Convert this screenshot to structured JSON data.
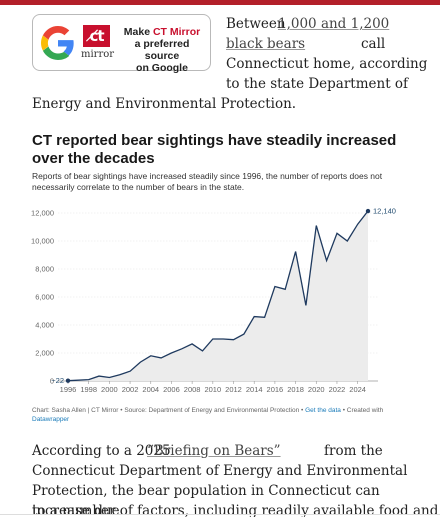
{
  "promo": {
    "google_icon": "google-g-logo",
    "ctmirror_mark": "c̸t",
    "ctmirror_word": "mirror",
    "line1_prefix": "Make ",
    "line1_brand": "CT Mirror",
    "line2": "a preferred source",
    "line3": "on Google"
  },
  "intro": {
    "between": "Between",
    "link": "1,000 and 1,200 black bears",
    "link_part1": "1,000 and 1,200",
    "link_part2": "black bears",
    "call": "call",
    "line3": "Connecticut home, according",
    "line4": "to the state Department of",
    "line5": "Energy and Environmental Protection."
  },
  "chart_data": {
    "type": "line",
    "title": "CT reported bear sightings have steadily increased over the decades",
    "subtitle": "Reports of bear sightings have increased steadily since 1996, the number of reports does not necessarily correlate to the number of bears in the state.",
    "x": [
      1996,
      1997,
      1998,
      1999,
      2000,
      2001,
      2002,
      2003,
      2004,
      2005,
      2006,
      2007,
      2008,
      2009,
      2010,
      2011,
      2012,
      2013,
      2014,
      2015,
      2016,
      2017,
      2018,
      2019,
      2020,
      2021,
      2022,
      2023,
      2024,
      2025
    ],
    "values": [
      22,
      60,
      100,
      350,
      250,
      450,
      700,
      1350,
      1800,
      1650,
      2000,
      2300,
      2650,
      2150,
      3000,
      3000,
      2950,
      3350,
      4600,
      4550,
      6750,
      6550,
      9250,
      5400,
      11100,
      8600,
      10550,
      10000,
      11200,
      12140
    ],
    "x_tick_labels": [
      "1996",
      "1998",
      "2000",
      "2002",
      "2004",
      "2006",
      "2008",
      "2010",
      "2012",
      "2014",
      "2016",
      "2018",
      "2020",
      "2022",
      "2024"
    ],
    "y_tick_labels": [
      "0",
      "2,000",
      "4,000",
      "6,000",
      "8,000",
      "10,000",
      "12,000"
    ],
    "ylim": [
      0,
      12000
    ],
    "grid": true,
    "start_label": "22",
    "end_label": "12,140",
    "line_color": "#1f3a5f",
    "area_color": "#ececec"
  },
  "credits": {
    "text": "Chart: Sasha Allen | CT Mirror • Source: Department of Energy and Environmental Protection • ",
    "get_data": "Get the data",
    "created": " • Created with",
    "datawrapper": "Datawrapper"
  },
  "body": {
    "prefix": "According to a 2025",
    "link": "“Briefing on Bears”",
    "suffix": "from the",
    "line2": "Connecticut Department of Energy and Environmental",
    "line3": "Protection, the bear population in Connecticut can increase due",
    "line4": "to a number of factors, including readily available food and"
  },
  "colors": {
    "brand_red": "#c8102e",
    "top_bar": "#b3202a",
    "credit_link": "#1a7bb9"
  }
}
